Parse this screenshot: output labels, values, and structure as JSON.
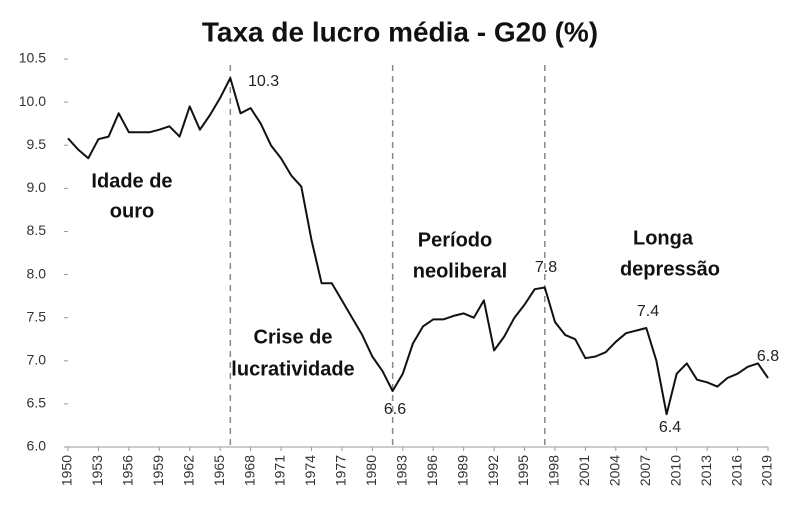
{
  "chart_data": {
    "type": "line",
    "title": "Taxa de lucro média - G20 (%)",
    "x": [
      1950,
      1951,
      1952,
      1953,
      1954,
      1955,
      1956,
      1957,
      1958,
      1959,
      1960,
      1961,
      1962,
      1963,
      1964,
      1965,
      1966,
      1967,
      1968,
      1969,
      1970,
      1971,
      1972,
      1973,
      1974,
      1975,
      1976,
      1977,
      1978,
      1979,
      1980,
      1981,
      1982,
      1983,
      1984,
      1985,
      1986,
      1987,
      1988,
      1989,
      1990,
      1991,
      1992,
      1993,
      1994,
      1995,
      1996,
      1997,
      1998,
      1999,
      2000,
      2001,
      2002,
      2003,
      2004,
      2005,
      2006,
      2007,
      2008,
      2009,
      2010,
      2011,
      2012,
      2013,
      2014,
      2015,
      2016,
      2017,
      2018,
      2019
    ],
    "series": [
      {
        "color": "#111111",
        "values": [
          9.58,
          9.45,
          9.35,
          9.57,
          9.6,
          9.87,
          9.65,
          9.65,
          9.65,
          9.68,
          9.72,
          9.6,
          9.95,
          9.68,
          9.85,
          10.05,
          10.28,
          9.87,
          9.93,
          9.75,
          9.5,
          9.35,
          9.15,
          9.02,
          8.4,
          7.9,
          7.9,
          7.7,
          7.5,
          7.3,
          7.05,
          6.88,
          6.65,
          6.85,
          7.2,
          7.4,
          7.48,
          7.48,
          7.52,
          7.55,
          7.5,
          7.7,
          7.12,
          7.28,
          7.5,
          7.65,
          7.83,
          7.85,
          7.45,
          7.3,
          7.25,
          7.03,
          7.05,
          7.1,
          7.22,
          7.32,
          7.35,
          7.38,
          7.0,
          6.38,
          6.85,
          6.97,
          6.78,
          6.75,
          6.7,
          6.8,
          6.85,
          6.93,
          6.97,
          6.8
        ]
      }
    ],
    "xlim": [
      1950,
      2019
    ],
    "xticks": [
      1950,
      1953,
      1956,
      1959,
      1962,
      1965,
      1968,
      1971,
      1974,
      1977,
      1980,
      1983,
      1986,
      1989,
      1992,
      1995,
      1998,
      2001,
      2004,
      2007,
      2010,
      2013,
      2016,
      2019
    ],
    "ylim": [
      6,
      10.5
    ],
    "yticks": [
      {
        "value": 6,
        "label": "6.0"
      },
      6.5,
      {
        "value": 7,
        "label": "7.0"
      },
      7.5,
      {
        "value": 8,
        "label": "8.0"
      },
      8.5,
      {
        "value": 9,
        "label": "9.0"
      },
      9.5,
      {
        "value": 10,
        "label": "10.0"
      },
      10.5
    ],
    "vlines": [
      1966,
      1982,
      1997
    ],
    "point_labels": [
      "10.3",
      "6.6",
      "7.8",
      "7.4",
      "6.4",
      "6.8"
    ],
    "periods": [
      [
        "Idade de",
        "ouro"
      ],
      [
        "Crise de",
        "lucratividade"
      ],
      [
        "Período",
        "neoliberal"
      ],
      [
        "Longa",
        "depressão"
      ]
    ]
  }
}
